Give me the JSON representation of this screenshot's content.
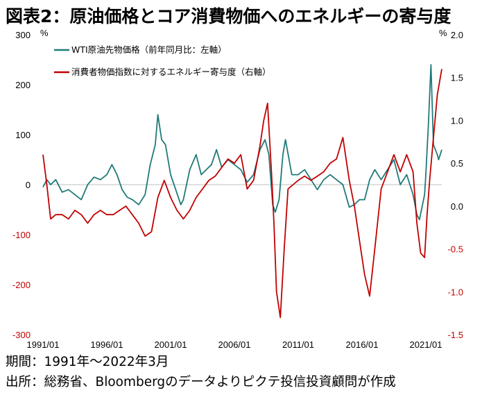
{
  "title": "図表2：原油価格とコア消費物価へのエネルギーの寄与度",
  "footer": {
    "period": "期間：1991年～2022年3月",
    "source": "出所：総務省、Bloombergのデータよりピクテ投信投資顧問が作成"
  },
  "chart_data": {
    "type": "line",
    "left_unit": "%",
    "right_unit": "%",
    "y_left_lim": [
      -300,
      300
    ],
    "y_right_lim": [
      -1.5,
      2.0
    ],
    "y_left_ticks": [
      300,
      200,
      100,
      0,
      -100,
      -200,
      -300
    ],
    "y_right_ticks": [
      2.0,
      1.5,
      1.0,
      0.5,
      0.0,
      -0.5,
      -1.0,
      -1.5
    ],
    "y_left_tick_labels": [
      "300",
      "200",
      "100",
      "0",
      "-100",
      "-200",
      "-300"
    ],
    "y_right_tick_labels": [
      "2.0",
      "1.5",
      "1.0",
      "0.5",
      "0.0",
      "-0.5",
      "-1.0",
      "-1.5"
    ],
    "x_tick_labels": [
      "1991/01",
      "1996/01",
      "2001/01",
      "2006/01",
      "2011/01",
      "2016/01",
      "2021/01"
    ],
    "x_ticks": [
      1991,
      1996,
      2001,
      2006,
      2011,
      2016,
      2021
    ],
    "x_range": [
      1991.0,
      2022.25
    ],
    "legend_position": "top-left",
    "colors": {
      "wti": "#1f7a78",
      "cpi": "#c00000",
      "axis_right": "#c00000",
      "zero_line": "#bfbfbf"
    },
    "series": [
      {
        "name": "WTI原油先物価格（前年同月比：左軸）",
        "axis": "left",
        "x": [
          1991.0,
          1991.3,
          1991.6,
          1992.0,
          1992.5,
          1993.0,
          1993.5,
          1994.0,
          1994.5,
          1995.0,
          1995.5,
          1996.0,
          1996.4,
          1996.8,
          1997.2,
          1997.6,
          1998.0,
          1998.5,
          1999.0,
          1999.4,
          1999.8,
          2000.0,
          2000.3,
          2000.6,
          2001.0,
          2001.4,
          2001.8,
          2002.0,
          2002.5,
          2003.0,
          2003.4,
          2003.8,
          2004.2,
          2004.6,
          2005.0,
          2005.5,
          2006.0,
          2006.5,
          2007.0,
          2007.5,
          2008.0,
          2008.4,
          2008.7,
          2009.0,
          2009.2,
          2009.5,
          2009.8,
          2010.0,
          2010.5,
          2011.0,
          2011.5,
          2012.0,
          2012.5,
          2013.0,
          2013.5,
          2014.0,
          2014.5,
          2015.0,
          2015.4,
          2015.8,
          2016.2,
          2016.6,
          2017.0,
          2017.5,
          2018.0,
          2018.5,
          2019.0,
          2019.5,
          2020.0,
          2020.3,
          2020.5,
          2020.9,
          2021.0,
          2021.2,
          2021.4,
          2021.6,
          2021.9,
          2022.0,
          2022.25
        ],
        "values": [
          -5,
          10,
          0,
          10,
          -15,
          -10,
          -20,
          -30,
          0,
          15,
          10,
          20,
          40,
          20,
          -10,
          -25,
          -30,
          -40,
          -20,
          40,
          80,
          140,
          90,
          80,
          20,
          -10,
          -40,
          -30,
          30,
          60,
          20,
          30,
          40,
          70,
          35,
          50,
          40,
          30,
          5,
          20,
          70,
          90,
          60,
          -40,
          -55,
          -30,
          60,
          90,
          20,
          20,
          30,
          10,
          -10,
          10,
          20,
          10,
          0,
          -45,
          -40,
          -30,
          -30,
          10,
          30,
          10,
          30,
          50,
          0,
          20,
          -20,
          -60,
          -70,
          -20,
          20,
          120,
          240,
          80,
          60,
          50,
          70
        ]
      },
      {
        "name": "消費者物価指数に対するエネルギー寄与度（右軸）",
        "axis": "right",
        "x": [
          1991.0,
          1991.3,
          1991.6,
          1992.0,
          1992.5,
          1993.0,
          1993.5,
          1994.0,
          1994.5,
          1995.0,
          1995.5,
          1996.0,
          1996.5,
          1997.0,
          1997.5,
          1998.0,
          1998.5,
          1999.0,
          1999.5,
          2000.0,
          2000.5,
          2001.0,
          2001.5,
          2002.0,
          2002.5,
          2003.0,
          2003.5,
          2004.0,
          2004.5,
          2005.0,
          2005.5,
          2006.0,
          2006.5,
          2007.0,
          2007.5,
          2008.0,
          2008.3,
          2008.6,
          2008.9,
          2009.1,
          2009.3,
          2009.6,
          2009.9,
          2010.2,
          2010.6,
          2011.0,
          2011.5,
          2012.0,
          2012.5,
          2013.0,
          2013.5,
          2014.0,
          2014.5,
          2015.0,
          2015.4,
          2015.8,
          2016.2,
          2016.6,
          2017.0,
          2017.5,
          2018.0,
          2018.5,
          2019.0,
          2019.5,
          2020.0,
          2020.3,
          2020.6,
          2020.9,
          2021.1,
          2021.3,
          2021.6,
          2021.9,
          2022.25
        ],
        "values": [
          0.6,
          0.25,
          -0.15,
          -0.1,
          -0.1,
          -0.15,
          -0.05,
          -0.1,
          -0.2,
          -0.1,
          -0.05,
          -0.1,
          -0.1,
          -0.05,
          0.0,
          -0.1,
          -0.2,
          -0.35,
          -0.3,
          0.1,
          0.3,
          0.1,
          -0.05,
          -0.15,
          -0.05,
          0.1,
          0.2,
          0.3,
          0.35,
          0.45,
          0.55,
          0.5,
          0.6,
          0.2,
          0.3,
          0.7,
          1.0,
          1.2,
          0.4,
          -0.2,
          -1.0,
          -1.3,
          -0.5,
          0.2,
          0.25,
          0.3,
          0.35,
          0.3,
          0.35,
          0.4,
          0.5,
          0.55,
          0.8,
          0.3,
          0.0,
          -0.4,
          -0.8,
          -1.05,
          -0.5,
          0.2,
          0.4,
          0.6,
          0.4,
          0.6,
          0.4,
          -0.2,
          -0.55,
          -0.6,
          -0.1,
          0.3,
          0.8,
          1.3,
          1.6
        ]
      }
    ]
  }
}
